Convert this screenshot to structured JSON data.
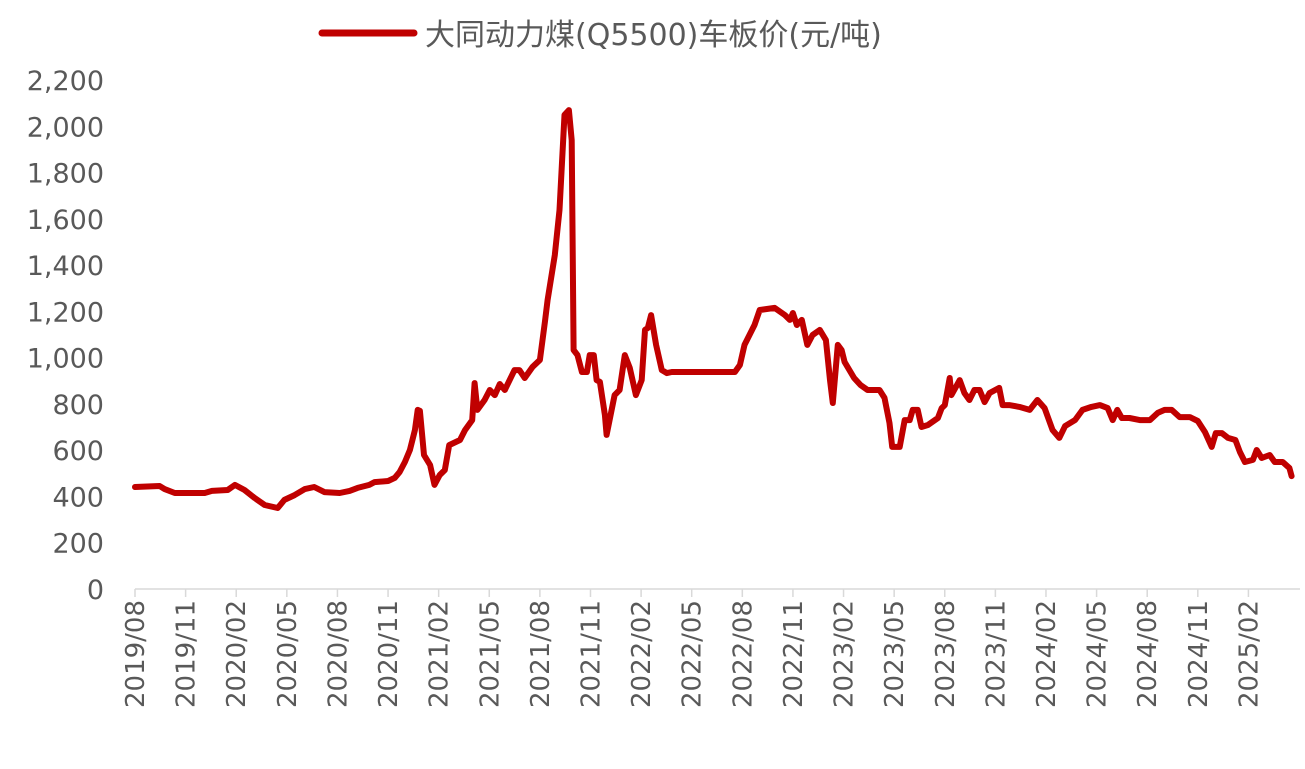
{
  "chart_data": {
    "type": "line",
    "title": "",
    "xlabel": "",
    "ylabel": "",
    "ylim": [
      0,
      2200
    ],
    "xlim": [
      "2019-08",
      "2025-05"
    ],
    "grid": false,
    "legend_position": "top",
    "yticks": [
      "0",
      "200",
      "400",
      "600",
      "800",
      "1,000",
      "1,200",
      "1,400",
      "1,600",
      "1,800",
      "2,000",
      "2,200"
    ],
    "ytick_values": [
      0,
      200,
      400,
      600,
      800,
      1000,
      1200,
      1400,
      1600,
      1800,
      2000,
      2200
    ],
    "xticks": [
      "2019/08",
      "2019/11",
      "2020/02",
      "2020/05",
      "2020/08",
      "2020/11",
      "2021/02",
      "2021/05",
      "2021/08",
      "2021/11",
      "2022/02",
      "2022/05",
      "2022/08",
      "2022/11",
      "2023/02",
      "2023/05",
      "2023/08",
      "2023/11",
      "2024/02",
      "2024/05",
      "2024/08",
      "2024/11",
      "2025/02"
    ],
    "series": [
      {
        "name": "大同动力煤(Q5500)车板价(元/吨)",
        "color": "#C00000",
        "x": [
          "2019-08-01",
          "2019-09-15",
          "2019-09-24",
          "2019-10-12",
          "2019-12-05",
          "2019-12-18",
          "2020-01-16",
          "2020-01-29",
          "2020-02-16",
          "2020-03-04",
          "2020-03-22",
          "2020-04-15",
          "2020-04-27",
          "2020-05-15",
          "2020-06-03",
          "2020-06-20",
          "2020-07-08",
          "2020-08-05",
          "2020-08-23",
          "2020-09-07",
          "2020-09-28",
          "2020-10-07",
          "2020-11-01",
          "2020-11-13",
          "2020-11-22",
          "2020-12-01",
          "2020-12-10",
          "2020-12-19",
          "2020-12-24",
          "2020-12-28",
          "2021-01-05",
          "2021-01-16",
          "2021-01-24",
          "2021-02-03",
          "2021-02-12",
          "2021-02-20",
          "2021-03-09",
          "2021-03-18",
          "2021-03-31",
          "2021-04-05",
          "2021-04-10",
          "2021-04-23",
          "2021-05-02",
          "2021-05-11",
          "2021-05-20",
          "2021-05-29",
          "2021-06-16",
          "2021-06-25",
          "2021-07-04",
          "2021-07-18",
          "2021-08-01",
          "2021-08-10",
          "2021-08-15",
          "2021-08-28",
          "2021-09-06",
          "2021-09-15",
          "2021-09-23",
          "2021-09-28",
          "2021-10-01",
          "2021-10-08",
          "2021-10-16",
          "2021-10-25",
          "2021-10-30",
          "2021-11-07",
          "2021-11-12",
          "2021-11-18",
          "2021-11-27",
          "2021-11-30",
          "2021-12-14",
          "2021-12-23",
          "2022-01-02",
          "2022-01-11",
          "2022-01-22",
          "2022-02-02",
          "2022-02-08",
          "2022-02-13",
          "2022-02-19",
          "2022-02-28",
          "2022-03-08",
          "2022-03-17",
          "2022-03-26",
          "2022-07-18",
          "2022-07-27",
          "2022-08-05",
          "2022-08-23",
          "2022-09-02",
          "2022-09-29",
          "2022-10-17",
          "2022-10-26",
          "2022-11-01",
          "2022-11-08",
          "2022-11-17",
          "2022-11-27",
          "2022-12-06",
          "2022-12-19",
          "2022-12-30",
          "2023-01-07",
          "2023-01-12",
          "2023-01-21",
          "2023-01-28",
          "2023-02-03",
          "2023-02-20",
          "2023-03-01",
          "2023-03-14",
          "2023-04-05",
          "2023-04-14",
          "2023-04-23",
          "2023-04-28",
          "2023-05-11",
          "2023-05-20",
          "2023-05-29",
          "2023-06-04",
          "2023-06-13",
          "2023-06-20",
          "2023-07-01",
          "2023-07-19",
          "2023-07-26",
          "2023-08-01",
          "2023-08-10",
          "2023-08-13",
          "2023-08-28",
          "2023-09-06",
          "2023-09-15",
          "2023-09-24",
          "2023-10-03",
          "2023-10-12",
          "2023-10-21",
          "2023-11-08",
          "2023-11-14",
          "2023-11-26",
          "2023-12-14",
          "2024-01-02",
          "2024-01-16",
          "2024-01-29",
          "2024-02-13",
          "2024-02-25",
          "2024-03-05",
          "2024-03-23",
          "2024-04-06",
          "2024-04-22",
          "2024-05-07",
          "2024-05-21",
          "2024-05-30",
          "2024-06-08",
          "2024-06-16",
          "2024-06-30",
          "2024-07-18",
          "2024-08-06",
          "2024-08-20",
          "2024-09-02",
          "2024-09-15",
          "2024-09-29",
          "2024-10-17",
          "2024-11-01",
          "2024-11-14",
          "2024-11-26",
          "2024-12-03",
          "2024-12-14",
          "2024-12-25",
          "2025-01-08",
          "2025-01-16",
          "2025-01-25",
          "2025-02-09",
          "2025-02-16",
          "2025-02-25",
          "2025-03-09",
          "2025-03-18",
          "2025-04-02",
          "2025-04-14",
          "2025-04-18"
        ],
        "y": [
          441,
          445,
          432,
          415,
          415,
          424,
          428,
          450,
          428,
          393,
          363,
          350,
          385,
          406,
          432,
          441,
          419,
          415,
          424,
          437,
          450,
          462,
          467,
          480,
          506,
          549,
          601,
          687,
          774,
          770,
          579,
          536,
          450,
          493,
          514,
          622,
          644,
          687,
          730,
          890,
          774,
          817,
          860,
          838,
          886,
          860,
          946,
          946,
          912,
          959,
          990,
          1154,
          1249,
          1443,
          1638,
          2049,
          2070,
          1940,
          1033,
          1011,
          938,
          938,
          1011,
          1011,
          903,
          895,
          752,
          666,
          838,
          860,
          1011,
          955,
          838,
          903,
          1120,
          1128,
          1184,
          1055,
          946,
          933,
          938,
          938,
          968,
          1055,
          1141,
          1206,
          1215,
          1184,
          1163,
          1193,
          1141,
          1163,
          1055,
          1098,
          1120,
          1076,
          903,
          804,
          1055,
          1033,
          981,
          912,
          882,
          860,
          860,
          826,
          717,
          614,
          614,
          730,
          730,
          774,
          774,
          700,
          709,
          739,
          782,
          795,
          912,
          838,
          903,
          847,
          817,
          860,
          860,
          808,
          847,
          869,
          795,
          795,
          787,
          774,
          817,
          782,
          687,
          653,
          704,
          730,
          774,
          787,
          795,
          782,
          730,
          774,
          739,
          739,
          730,
          730,
          761,
          774,
          774,
          743,
          743,
          726,
          678,
          614,
          674,
          674,
          653,
          644,
          592,
          549,
          558,
          601,
          566,
          579,
          549,
          549,
          523,
          488
        ]
      }
    ]
  }
}
